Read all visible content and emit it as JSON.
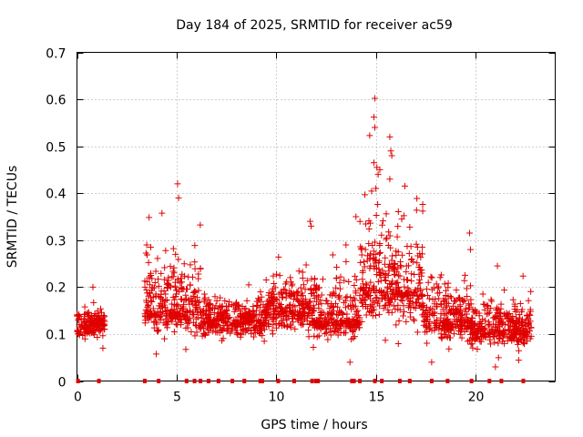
{
  "chart_data": {
    "type": "scatter",
    "title": "Day 184 of 2025, SRMTID for receiver ac59",
    "xlabel": "GPS time / hours",
    "ylabel": "SRMTID / TECUs",
    "xlim": [
      0,
      24
    ],
    "ylim": [
      0,
      0.7
    ],
    "x_ticks": [
      0,
      5,
      10,
      15,
      20
    ],
    "y_ticks": [
      0,
      0.1,
      0.2,
      0.3,
      0.4,
      0.5,
      0.6,
      0.7
    ],
    "x_tick_labels": [
      "0",
      "5",
      "10",
      "15",
      "20"
    ],
    "y_tick_labels": [
      "0",
      "0.1",
      "0.2",
      "0.3",
      "0.4",
      "0.5",
      "0.6",
      "0.7"
    ],
    "grid": true,
    "marker": "+",
    "color": "#e00000",
    "segments": [
      {
        "x": [
          0.0,
          1.4
        ],
        "low": 0.06,
        "high": 0.2,
        "mid": 0.12
      },
      {
        "x": [
          3.4,
          6.2
        ],
        "low": 0.05,
        "high": 0.42,
        "mid": 0.15
      },
      {
        "x": [
          6.2,
          9.5
        ],
        "low": 0.05,
        "high": 0.24,
        "mid": 0.13
      },
      {
        "x": [
          9.5,
          11.8
        ],
        "low": 0.06,
        "high": 0.34,
        "mid": 0.15
      },
      {
        "x": [
          11.8,
          14.2
        ],
        "low": 0.04,
        "high": 0.35,
        "mid": 0.13
      },
      {
        "x": [
          14.2,
          17.4
        ],
        "low": 0.05,
        "high": 0.6,
        "mid": 0.2
      },
      {
        "x": [
          17.4,
          19.8
        ],
        "low": 0.04,
        "high": 0.32,
        "mid": 0.13
      },
      {
        "x": [
          19.8,
          22.8
        ],
        "low": 0.03,
        "high": 0.25,
        "mid": 0.11
      }
    ],
    "notable_points": [
      {
        "x": 0.05,
        "y": 0.1
      },
      {
        "x": 5.05,
        "y": 0.42
      },
      {
        "x": 5.1,
        "y": 0.39
      },
      {
        "x": 14.95,
        "y": 0.602
      },
      {
        "x": 14.9,
        "y": 0.562
      },
      {
        "x": 14.95,
        "y": 0.54
      },
      {
        "x": 15.7,
        "y": 0.52
      },
      {
        "x": 15.75,
        "y": 0.49
      },
      {
        "x": 15.8,
        "y": 0.48
      },
      {
        "x": 14.9,
        "y": 0.465
      },
      {
        "x": 15.05,
        "y": 0.455
      },
      {
        "x": 15.2,
        "y": 0.45
      },
      {
        "x": 15.0,
        "y": 0.41
      },
      {
        "x": 15.7,
        "y": 0.43
      },
      {
        "x": 11.7,
        "y": 0.34
      },
      {
        "x": 11.75,
        "y": 0.33
      },
      {
        "x": 14.0,
        "y": 0.35
      },
      {
        "x": 16.3,
        "y": 0.345
      },
      {
        "x": 19.7,
        "y": 0.315
      },
      {
        "x": 19.75,
        "y": 0.28
      },
      {
        "x": 3.5,
        "y": 0.29
      },
      {
        "x": 3.7,
        "y": 0.285
      },
      {
        "x": 0.8,
        "y": 0.2
      },
      {
        "x": 13.5,
        "y": 0.29
      },
      {
        "x": 21.1,
        "y": 0.245
      },
      {
        "x": 6.2,
        "y": 0.24
      },
      {
        "x": 13.7,
        "y": 0.04
      },
      {
        "x": 21.0,
        "y": 0.03
      },
      {
        "x": 17.8,
        "y": 0.04
      },
      {
        "x": 1.3,
        "y": 0.07
      }
    ],
    "zero_markers": [
      0.05,
      1.1,
      3.4,
      4.1,
      5.5,
      5.9,
      6.2,
      6.6,
      7.1,
      7.8,
      8.4,
      9.2,
      9.3,
      10.1,
      10.9,
      11.8,
      12.0,
      12.1,
      13.8,
      13.9,
      14.2,
      14.95,
      15.3,
      16.2,
      16.7,
      17.8,
      18.6,
      19.8,
      20.7,
      21.3,
      22.4
    ]
  }
}
